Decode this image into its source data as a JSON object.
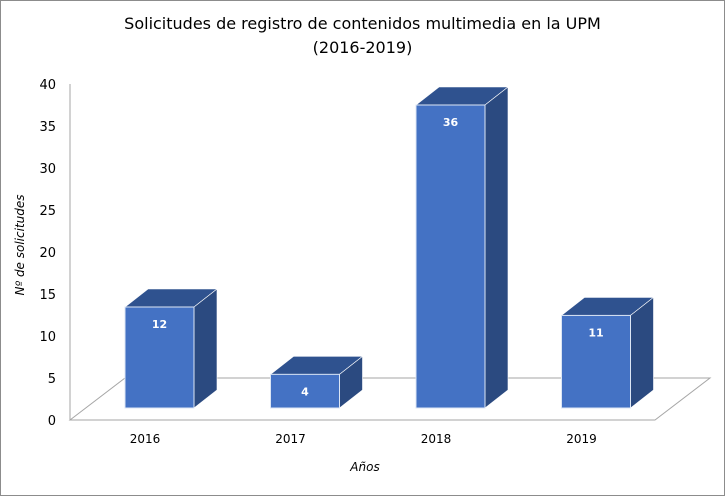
{
  "chart_data": {
    "type": "bar",
    "title": "Solicitudes de registro de contenidos multimedia en la UPM",
    "subtitle": "(2016-2019)",
    "xlabel": "Años",
    "ylabel": "Nº de solicitudes",
    "categories": [
      "2016",
      "2017",
      "2018",
      "2019"
    ],
    "values": [
      12,
      4,
      36,
      11
    ],
    "data_labels": [
      "12",
      "4",
      "36",
      "11"
    ],
    "ylim": [
      0,
      40
    ],
    "yticks": [
      "0",
      "5",
      "10",
      "15",
      "20",
      "25",
      "30",
      "35",
      "40"
    ],
    "grid": false,
    "legend": "none",
    "style": "3d-column",
    "colors": {
      "front": "#4472c4",
      "top": "#2f528f",
      "side": "#2b4a80"
    }
  }
}
